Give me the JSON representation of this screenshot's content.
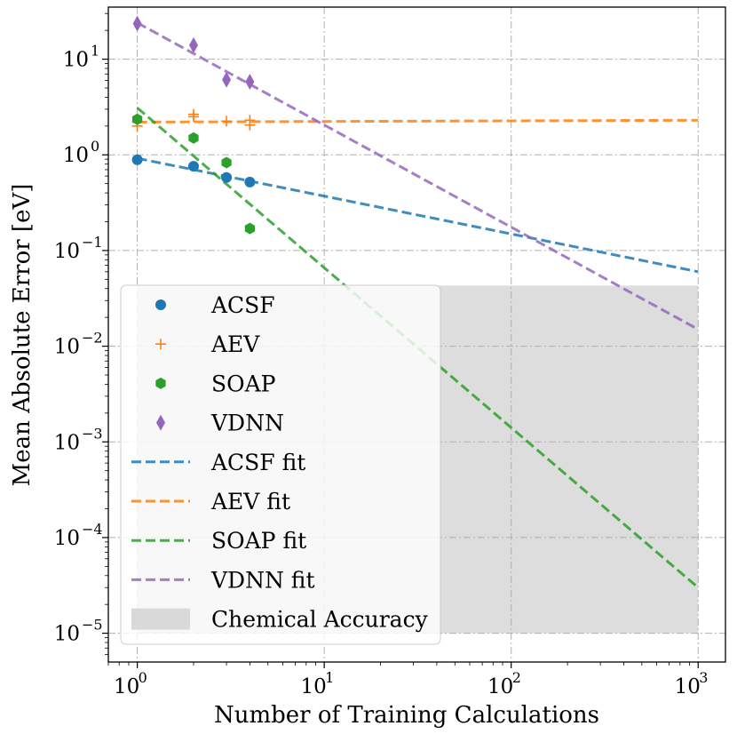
{
  "chart_data": {
    "type": "scatter",
    "xscale": "log",
    "yscale": "log",
    "xlim": [
      0.7,
      1400
    ],
    "ylim": [
      5e-06,
      35
    ],
    "xlabel": "Number of Training Calculations",
    "ylabel": "Mean Absolute Error [eV]",
    "grid": true,
    "legend_position": "lower-left",
    "x_ticks": [
      {
        "base": "10",
        "exp": "0",
        "value": 1
      },
      {
        "base": "10",
        "exp": "1",
        "value": 10
      },
      {
        "base": "10",
        "exp": "2",
        "value": 100
      },
      {
        "base": "10",
        "exp": "3",
        "value": 1000
      }
    ],
    "y_ticks": [
      {
        "base": "10",
        "exp": "−5",
        "value": 1e-05
      },
      {
        "base": "10",
        "exp": "−4",
        "value": 0.0001
      },
      {
        "base": "10",
        "exp": "−3",
        "value": 0.001
      },
      {
        "base": "10",
        "exp": "−2",
        "value": 0.01
      },
      {
        "base": "10",
        "exp": "−1",
        "value": 0.1
      },
      {
        "base": "10",
        "exp": "0",
        "value": 1
      },
      {
        "base": "10",
        "exp": "1",
        "value": 10
      }
    ],
    "series": [
      {
        "name": "ACSF",
        "marker": "circle",
        "color": "#1f77b4",
        "x": [
          1,
          2,
          3,
          4
        ],
        "y": [
          0.89,
          0.76,
          0.58,
          0.52
        ]
      },
      {
        "name": "AEV",
        "marker": "plus",
        "color": "#ff7f0e",
        "x": [
          1,
          1,
          2,
          2,
          3,
          4,
          4
        ],
        "y": [
          2.2,
          2.0,
          2.5,
          2.65,
          2.25,
          2.3,
          2.05
        ]
      },
      {
        "name": "SOAP",
        "marker": "hexagon",
        "color": "#2ca02c",
        "x": [
          1,
          2,
          3,
          4
        ],
        "y": [
          2.35,
          1.5,
          0.83,
          0.17
        ]
      },
      {
        "name": "VDNN",
        "marker": "diamond",
        "color": "#9467bd",
        "x": [
          1,
          2,
          3,
          4
        ],
        "y": [
          23.5,
          14.0,
          6.1,
          5.8
        ]
      }
    ],
    "fits": [
      {
        "name": "ACSF fit",
        "color": "#1f77b4",
        "x": [
          1,
          1000
        ],
        "y": [
          0.92,
          0.06
        ]
      },
      {
        "name": "AEV fit",
        "color": "#ff7f0e",
        "x": [
          1,
          1000
        ],
        "y": [
          2.2,
          2.3
        ]
      },
      {
        "name": "SOAP fit",
        "color": "#2ca02c",
        "x": [
          1,
          1000
        ],
        "y": [
          3.1,
          3e-05
        ]
      },
      {
        "name": "VDNN fit",
        "color": "#9467bd",
        "x": [
          1,
          1000
        ],
        "y": [
          24,
          0.015
        ]
      }
    ],
    "region": {
      "name": "Chemical Accuracy",
      "color": "#d9d9d9",
      "x": [
        1,
        1000
      ],
      "y": [
        1e-05,
        0.043
      ]
    }
  }
}
